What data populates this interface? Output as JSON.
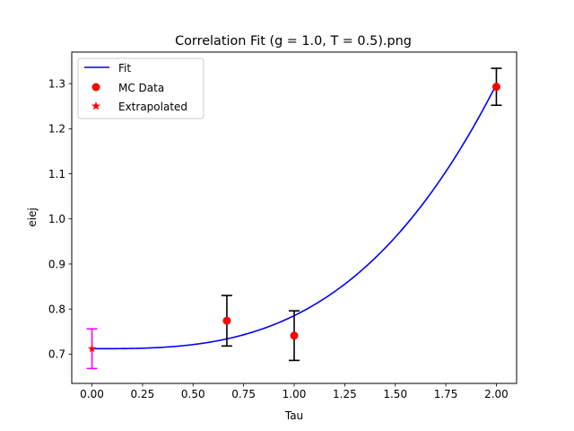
{
  "chart_data": {
    "type": "scatter",
    "title": "Correlation Fit (g = 1.0, T = 0.5).png",
    "xlabel": "Tau",
    "ylabel": "eiej",
    "xlim": [
      -0.1,
      2.1
    ],
    "ylim": [
      0.635,
      1.37
    ],
    "xticks": [
      0.0,
      0.25,
      0.5,
      0.75,
      1.0,
      1.25,
      1.5,
      1.75,
      2.0
    ],
    "xtick_labels": [
      "0.00",
      "0.25",
      "0.50",
      "0.75",
      "1.00",
      "1.25",
      "1.50",
      "1.75",
      "2.00"
    ],
    "yticks": [
      0.7,
      0.8,
      0.9,
      1.0,
      1.1,
      1.2,
      1.3
    ],
    "ytick_labels": [
      "0.7",
      "0.8",
      "0.9",
      "1.0",
      "1.1",
      "1.2",
      "1.3"
    ],
    "grid": false,
    "legend_position": "top-left",
    "series": [
      {
        "name": "Fit",
        "kind": "line",
        "color": "#0000ff",
        "model": {
          "a": 0.712,
          "b": 0.0733,
          "p": 3.0
        }
      },
      {
        "name": "MC Data",
        "kind": "scatter",
        "marker": "circle",
        "color": "#ff0000",
        "errorbar_color": "#000000",
        "points": [
          {
            "x": 0.667,
            "y": 0.774,
            "yerr": 0.056
          },
          {
            "x": 1.0,
            "y": 0.741,
            "yerr": 0.055
          },
          {
            "x": 2.0,
            "y": 1.293,
            "yerr": 0.041
          }
        ]
      },
      {
        "name": "Extrapolated",
        "kind": "scatter",
        "marker": "star",
        "color": "#ff0000",
        "errorbar_color": "#ff00ff",
        "points": [
          {
            "x": 0.0,
            "y": 0.712,
            "yerr": 0.044
          }
        ]
      }
    ]
  }
}
